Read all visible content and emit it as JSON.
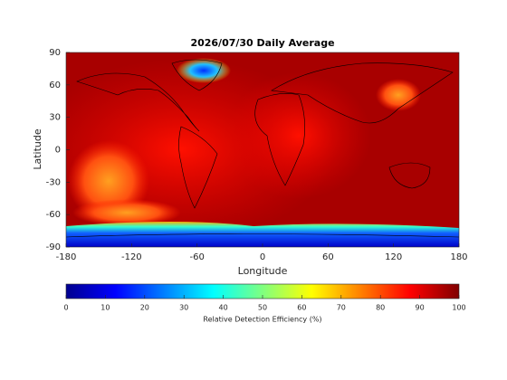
{
  "chart_data": {
    "type": "map",
    "title": "2026/07/30 Daily Average",
    "xlabel": "Longitude",
    "ylabel": "Latitude",
    "xlim": [
      -180,
      180
    ],
    "xticks": [
      -180,
      -120,
      -60,
      0,
      60,
      120,
      180
    ],
    "ylim": [
      -90,
      90
    ],
    "yticks": [
      -90,
      -60,
      -30,
      0,
      30,
      60,
      90
    ],
    "colorbar": {
      "label": "Relative Detection Efficiency (%)",
      "lim": [
        0,
        100
      ],
      "ticks": [
        0,
        10,
        20,
        30,
        40,
        50,
        60,
        70,
        80,
        90,
        100
      ],
      "colormap": "jet"
    }
  }
}
